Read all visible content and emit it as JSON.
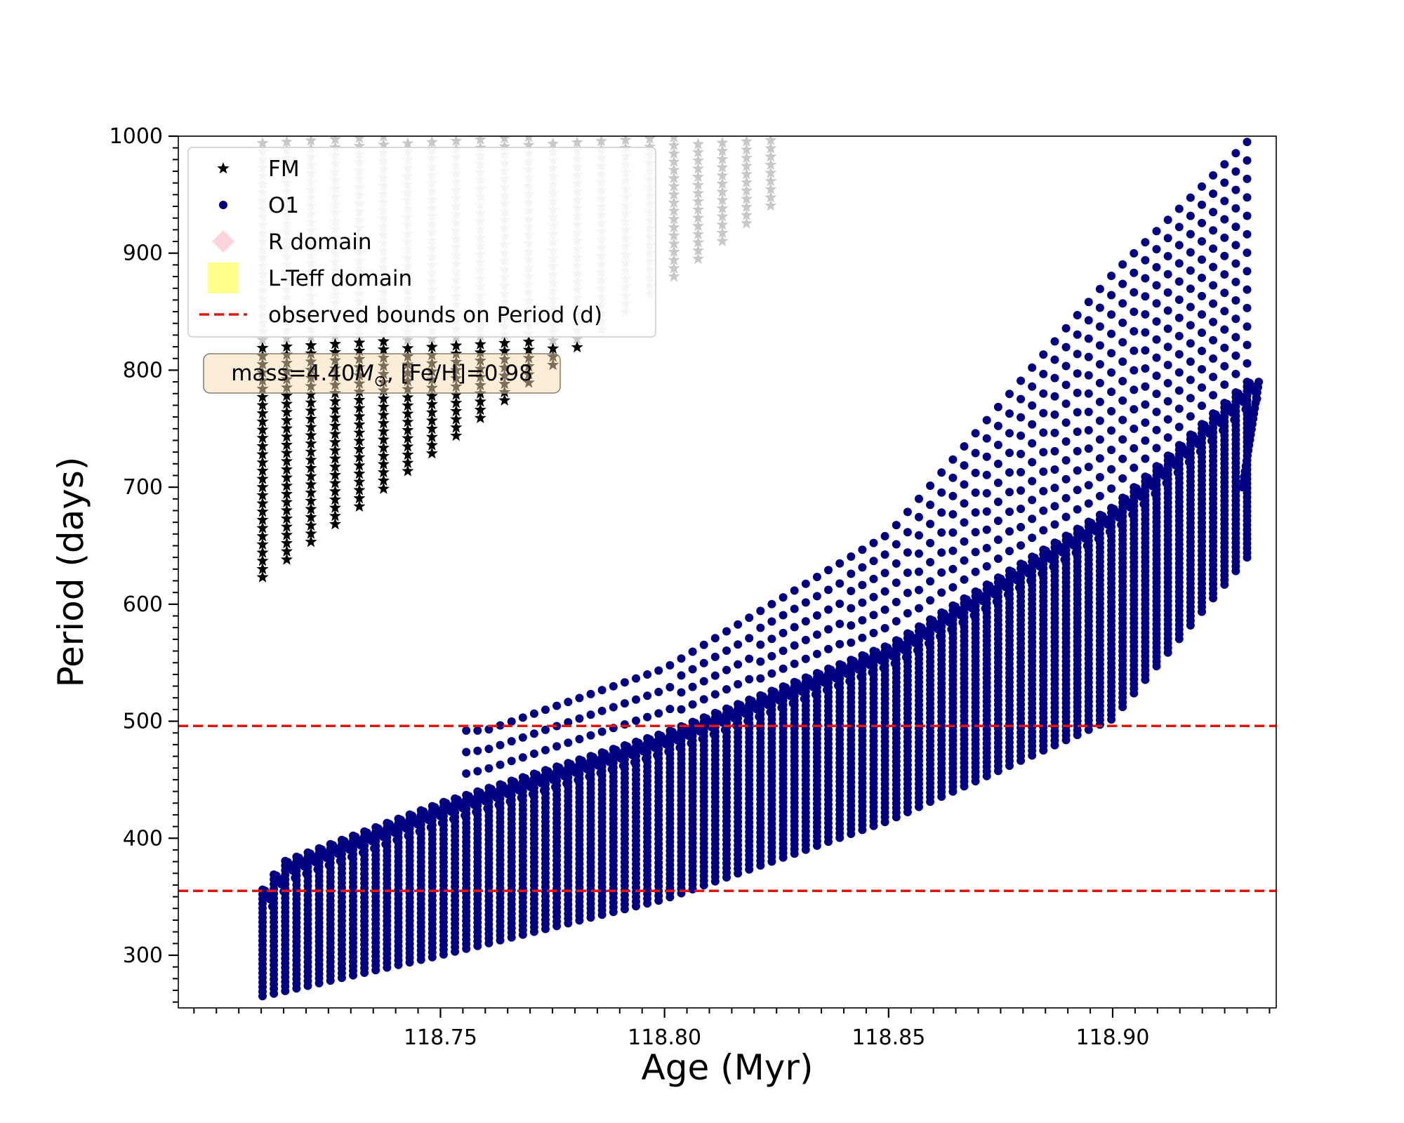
{
  "chart_data": {
    "type": "scatter",
    "xlabel": "Age (Myr)",
    "ylabel": "Period (days)",
    "xlim": [
      118.6915,
      118.9365
    ],
    "ylim": [
      255,
      1000
    ],
    "xticks": [
      118.75,
      118.8,
      118.85,
      118.9
    ],
    "xtick_labels": [
      "118.75",
      "118.80",
      "118.85",
      "118.90"
    ],
    "xminor_step": 0.005,
    "yticks": [
      300,
      400,
      500,
      600,
      700,
      800,
      900,
      1000
    ],
    "ytick_labels": [
      "300",
      "400",
      "500",
      "600",
      "700",
      "800",
      "900",
      "1000"
    ],
    "yminor_step": 10,
    "grid": false,
    "legend_position": "upper-left",
    "annotation": {
      "prefix": "mass=4.40",
      "symbol": "M",
      "subscript": "⊙",
      "suffix": ", [Fe/H]=0.98"
    },
    "series": [
      {
        "name": "FM",
        "marker": "star",
        "color": "#000000",
        "faded_color": "#c8c8c8",
        "faded_above": 825,
        "model": {
          "age_start": 118.7103,
          "age_step": 0.0054,
          "count": 22,
          "start_min": 623,
          "min_slope": 2800,
          "top": 1000
        }
      },
      {
        "name": "O1",
        "marker": "circle",
        "color": "#000080",
        "model": {
          "age_start": 118.7103,
          "age_end": 118.93,
          "count": 88,
          "lower_envelope": [
            [
              118.7103,
              265
            ],
            [
              118.75,
              300
            ],
            [
              118.8,
              348
            ],
            [
              118.85,
              415
            ],
            [
              118.9,
              502
            ],
            [
              118.93,
              640
            ]
          ],
          "upper_envelope": [
            [
              118.7103,
              356
            ],
            [
              118.715,
              380
            ],
            [
              118.75,
              430
            ],
            [
              118.8,
              490
            ],
            [
              118.85,
              565
            ],
            [
              118.9,
              683
            ],
            [
              118.93,
              790
            ]
          ],
          "outlier_envelope": [
            [
              118.76,
              492
            ],
            [
              118.8,
              545
            ],
            [
              118.85,
              660
            ],
            [
              118.9,
              882
            ],
            [
              118.93,
              995
            ]
          ]
        }
      },
      {
        "name": "R domain",
        "marker": "diamond",
        "color": "#ffc0cb"
      },
      {
        "name": "L-Teff domain",
        "marker": "square",
        "color": "#ffff66"
      }
    ],
    "hlines": {
      "name": "observed bounds on Period (d)",
      "values": [
        355,
        496
      ],
      "color": "#e8140c",
      "style": "dashed"
    }
  }
}
